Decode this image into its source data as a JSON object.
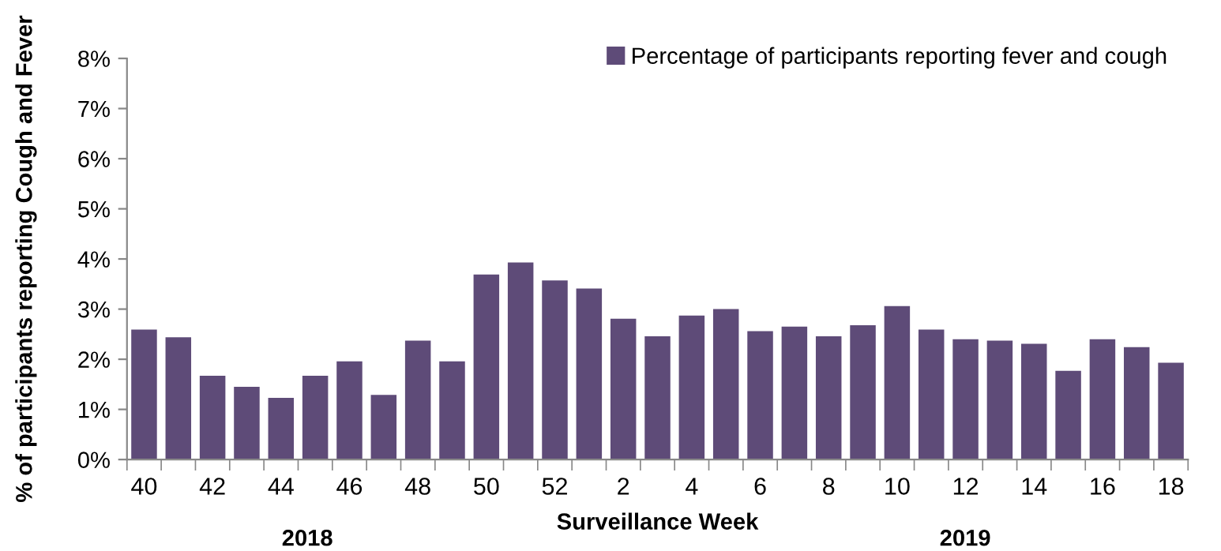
{
  "chart_data": {
    "type": "bar",
    "xlabel": "Surveillance Week",
    "ylabel": "% of participants reporting Cough and Fever",
    "categories": [
      "40",
      null,
      "42",
      null,
      "44",
      null,
      "46",
      null,
      "48",
      null,
      "50",
      null,
      "52",
      null,
      "2",
      null,
      "4",
      null,
      "6",
      null,
      "8",
      null,
      "10",
      null,
      "12",
      null,
      "14",
      null,
      "16",
      null,
      "18"
    ],
    "series": [
      {
        "name": "Percentage of participants reporting fever and cough",
        "color": "#5e4b78",
        "values": [
          2.59,
          2.44,
          1.67,
          1.45,
          1.23,
          1.67,
          1.96,
          1.29,
          2.37,
          1.96,
          3.69,
          3.93,
          3.57,
          3.41,
          2.81,
          2.46,
          2.87,
          3.0,
          2.56,
          2.65,
          2.46,
          2.68,
          3.06,
          2.59,
          2.4,
          2.37,
          2.31,
          1.77,
          2.4,
          2.24,
          1.93
        ]
      }
    ],
    "ylim": [
      0,
      8
    ],
    "yticks": [
      {
        "value": 0,
        "label": "0%"
      },
      {
        "value": 1,
        "label": "1%"
      },
      {
        "value": 2,
        "label": "2%"
      },
      {
        "value": 3,
        "label": "3%"
      },
      {
        "value": 4,
        "label": "4%"
      },
      {
        "value": 5,
        "label": "5%"
      },
      {
        "value": 6,
        "label": "6%"
      },
      {
        "value": 7,
        "label": "7%"
      },
      {
        "value": 8,
        "label": "8%"
      }
    ],
    "annotations": [
      "2018",
      "2019"
    ],
    "legend": "top right",
    "grid": false
  }
}
